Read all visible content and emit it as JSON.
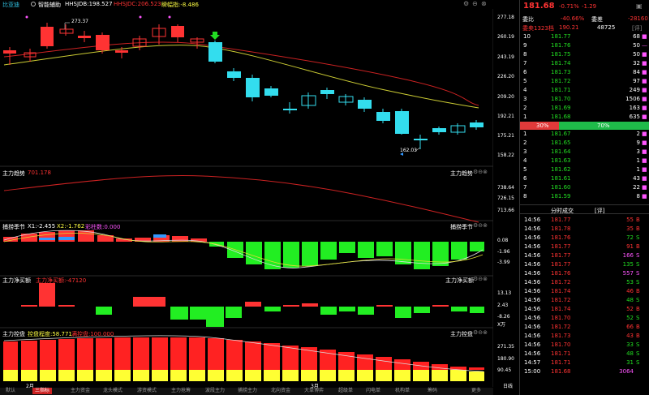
{
  "window": {
    "title": "比亚迪"
  },
  "indicators": {
    "smart": "智能辅助",
    "sjdb": "HHSJDB:198.527",
    "sjdc": "HHSJDC:206.523",
    "volatility": "瞬幅指:-8.486"
  },
  "price_axis": [
    "277.18",
    "260.19",
    "243.19",
    "226.20",
    "209.20",
    "192.21",
    "175.21",
    "158.22"
  ],
  "candle_notes": {
    "high": "273.37",
    "low": "162.03"
  },
  "panels": {
    "trend": {
      "title": "主力趋势",
      "value": "701.178",
      "label": "主力趋势",
      "axis": [
        "738.64",
        "726.15",
        "713.66"
      ]
    },
    "capture": {
      "title": "捕捞季节",
      "x1": "X1:-2.455",
      "x2": "X2:-1.762",
      "color": "彩柱数:0.000",
      "label": "捕捞季节",
      "axis": [
        "0.08",
        "-1.96",
        "-3.99"
      ]
    },
    "netbuy": {
      "title": "主力净买额",
      "value": "主力净买额:-47120",
      "label": "主力净买额",
      "axis": [
        "13.13",
        "2.43",
        "-8.26"
      ],
      "unit": "X万"
    },
    "control": {
      "title": "主力控盘",
      "degree": "控盘程度:58.771",
      "full": "满控盘:100.000",
      "label": "主力控盘",
      "axis": [
        "271.35",
        "180.90",
        "90.45"
      ]
    }
  },
  "months": {
    "feb": "2月",
    "mar": "3月"
  },
  "bottom_tabs": [
    "默认",
    "三指标",
    "主力资金",
    "龙头模式",
    "游资模式",
    "主力抢筹",
    "波段主力",
    "捕捞主力",
    "北向资金",
    "大单博弈",
    "超级单",
    "闪电单",
    "机构单",
    "筹码",
    "更多"
  ],
  "quote": {
    "price": "181.68",
    "pct": "-0.71%",
    "change": "-1.29",
    "weibi_label": "委比",
    "weibi_value": "-40.66%",
    "weicha_label": "委差",
    "weicha_value": "-28160",
    "weimai_label": "委卖1323档",
    "weimai_price": "190.21",
    "weimai_vol": "48725",
    "ratio_left": "30%",
    "ratio_right": "70%"
  },
  "asks": [
    {
      "level": "10",
      "price": "181.77",
      "vol": "68"
    },
    {
      "level": "9",
      "price": "181.76",
      "vol": "50"
    },
    {
      "level": "8",
      "price": "181.75",
      "vol": "50"
    },
    {
      "level": "7",
      "price": "181.74",
      "vol": "32"
    },
    {
      "level": "6",
      "price": "181.73",
      "vol": "84"
    },
    {
      "level": "5",
      "price": "181.72",
      "vol": "97"
    },
    {
      "level": "4",
      "price": "181.71",
      "vol": "249"
    },
    {
      "level": "3",
      "price": "181.70",
      "vol": "1506"
    },
    {
      "level": "2",
      "price": "181.69",
      "vol": "163"
    },
    {
      "level": "1",
      "price": "181.68",
      "vol": "635"
    }
  ],
  "bids": [
    {
      "level": "1",
      "price": "181.67",
      "vol": "2"
    },
    {
      "level": "2",
      "price": "181.65",
      "vol": "9"
    },
    {
      "level": "3",
      "price": "181.64",
      "vol": "3"
    },
    {
      "level": "4",
      "price": "181.63",
      "vol": "1"
    },
    {
      "level": "5",
      "price": "181.62",
      "vol": "1"
    },
    {
      "level": "6",
      "price": "181.61",
      "vol": "43"
    },
    {
      "level": "7",
      "price": "181.60",
      "vol": "22"
    },
    {
      "level": "8",
      "price": "181.59",
      "vol": "8"
    }
  ],
  "ticks_header": {
    "title": "分时成交",
    "tag": "[评]"
  },
  "ticks": [
    {
      "time": "14:56",
      "price": "181.77",
      "vol": "55",
      "dir": "B"
    },
    {
      "time": "14:56",
      "price": "181.78",
      "vol": "35",
      "dir": "B"
    },
    {
      "time": "14:56",
      "price": "181.76",
      "vol": "72",
      "dir": "S"
    },
    {
      "time": "14:56",
      "price": "181.77",
      "vol": "91",
      "dir": "B"
    },
    {
      "time": "14:56",
      "price": "181.77",
      "vol": "166",
      "dir": "S"
    },
    {
      "time": "14:56",
      "price": "181.77",
      "vol": "135",
      "dir": "S"
    },
    {
      "time": "14:56",
      "price": "181.76",
      "vol": "557",
      "dir": "S"
    },
    {
      "time": "14:56",
      "price": "181.72",
      "vol": "53",
      "dir": "S"
    },
    {
      "time": "14:56",
      "price": "181.74",
      "vol": "46",
      "dir": "B"
    },
    {
      "time": "14:56",
      "price": "181.72",
      "vol": "48",
      "dir": "S"
    },
    {
      "time": "14:56",
      "price": "181.74",
      "vol": "52",
      "dir": "B"
    },
    {
      "time": "14:56",
      "price": "181.70",
      "vol": "52",
      "dir": "S"
    },
    {
      "time": "14:56",
      "price": "181.72",
      "vol": "66",
      "dir": "B"
    },
    {
      "time": "14:56",
      "price": "181.73",
      "vol": "43",
      "dir": "B"
    },
    {
      "time": "14:56",
      "price": "181.70",
      "vol": "33",
      "dir": "S"
    },
    {
      "time": "14:56",
      "price": "181.71",
      "vol": "48",
      "dir": "S"
    },
    {
      "time": "14:57",
      "price": "181.71",
      "vol": "31",
      "dir": "S"
    },
    {
      "time": "15:00",
      "price": "181.68",
      "vol": "3064",
      "dir": ""
    }
  ],
  "right_side_tag": "日线"
}
